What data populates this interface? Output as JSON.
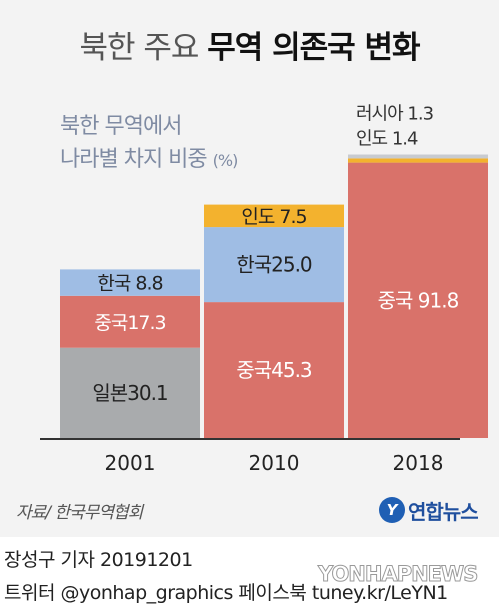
{
  "title": {
    "light": "북한 주요 ",
    "bold": "무역 의존국 변화"
  },
  "subtitle": {
    "line1": "북한 무역에서",
    "line2": "나라별 차지 비중",
    "unit": "(%)"
  },
  "colors": {
    "background": "#f3f3f3",
    "japan": "#a9abad",
    "china": "#d9726a",
    "korea": "#9fbde4",
    "india": "#f3b22e",
    "russia": "#c8cbd0",
    "axis": "#333333"
  },
  "chart_data": {
    "type": "bar",
    "stacked": true,
    "categories": [
      "2001",
      "2010",
      "2018"
    ],
    "ylim": [
      0,
      100
    ],
    "grid": false,
    "legend": "none",
    "bars": [
      {
        "category": "2001",
        "segments": [
          {
            "country": "일본",
            "value": 30.1,
            "label": "일본30.1",
            "color": "#a9abad",
            "text_color": "#222222"
          },
          {
            "country": "중국",
            "value": 17.3,
            "label": "중국17.3",
            "color": "#d9726a",
            "text_color": "#ffffff"
          },
          {
            "country": "한국",
            "value": 8.8,
            "label": "한국  8.8",
            "color": "#9fbde4",
            "text_color": "#222222"
          }
        ]
      },
      {
        "category": "2010",
        "segments": [
          {
            "country": "중국",
            "value": 45.3,
            "label": "중국45.3",
            "color": "#d9726a",
            "text_color": "#ffffff"
          },
          {
            "country": "한국",
            "value": 25.0,
            "label": "한국25.0",
            "color": "#9fbde4",
            "text_color": "#222222"
          },
          {
            "country": "인도",
            "value": 7.5,
            "label": "인도  7.5",
            "color": "#f3b22e",
            "text_color": "#222222"
          }
        ]
      },
      {
        "category": "2018",
        "segments": [
          {
            "country": "중국",
            "value": 91.8,
            "label": "중국 91.8",
            "color": "#d9726a",
            "text_color": "#ffffff"
          },
          {
            "country": "인도",
            "value": 1.4,
            "label": "",
            "color": "#f3b22e",
            "text_color": "#222222"
          },
          {
            "country": "러시아",
            "value": 1.3,
            "label": "",
            "color": "#c8cbd0",
            "text_color": "#222222"
          }
        ],
        "annotations": [
          "러시아 1.3",
          "인도 1.4"
        ]
      }
    ]
  },
  "source": "자료/ 한국무역협회",
  "logo": {
    "mark": "Y",
    "text": "연합뉴스"
  },
  "footer": {
    "line1": "장성구 기자  20191201",
    "line2": "트위터 @yonhap_graphics  페이스북 tuney.kr/LeYN1"
  },
  "watermark": "YONHAPNEWS"
}
